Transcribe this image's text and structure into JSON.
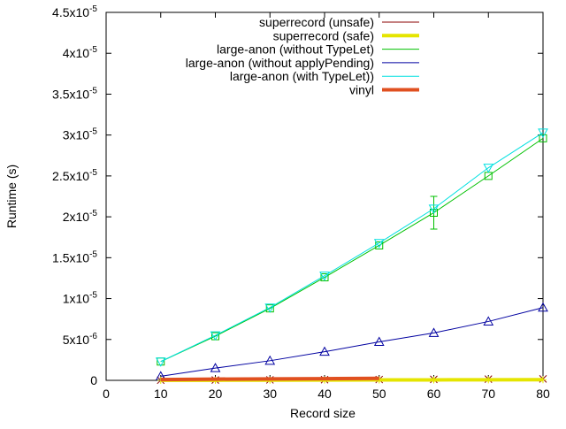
{
  "chart_data": {
    "type": "line",
    "xlabel": "Record size",
    "ylabel": "Runtime (s)",
    "x": [
      10,
      20,
      30,
      40,
      50,
      60,
      70,
      80
    ],
    "xlim": [
      0,
      80
    ],
    "xticks": [
      0,
      10,
      20,
      30,
      40,
      50,
      60,
      70,
      80
    ],
    "ylim": [
      0,
      4.5e-05
    ],
    "yticks": [
      {
        "value": 0,
        "label": "0"
      },
      {
        "value": 5e-06,
        "label": "5x10",
        "exponent": "-6"
      },
      {
        "value": 1e-05,
        "label": "1x10",
        "exponent": "-5"
      },
      {
        "value": 1.5e-05,
        "label": "1.5x10",
        "exponent": "-5"
      },
      {
        "value": 2e-05,
        "label": "2x10",
        "exponent": "-5"
      },
      {
        "value": 2.5e-05,
        "label": "2.5x10",
        "exponent": "-5"
      },
      {
        "value": 3e-05,
        "label": "3x10",
        "exponent": "-5"
      },
      {
        "value": 3.5e-05,
        "label": "3.5x10",
        "exponent": "-5"
      },
      {
        "value": 4e-05,
        "label": "4x10",
        "exponent": "-5"
      },
      {
        "value": 4.5e-05,
        "label": "4.5x10",
        "exponent": "-5"
      }
    ],
    "legend": "top-right",
    "series": [
      {
        "name": "superrecord (unsafe)",
        "color": "#8b0000",
        "width": 1,
        "marker": "cross",
        "values": [
          2e-08,
          4e-08,
          6e-08,
          8e-08,
          1e-07,
          1.2e-07,
          1.5e-07,
          1.8e-07
        ]
      },
      {
        "name": "superrecord (safe)",
        "color": "#e5e500",
        "width": 4,
        "marker": "plus",
        "values": [
          1e-08,
          2e-08,
          3e-08,
          4e-08,
          5e-08,
          6e-08,
          7e-08,
          8e-08
        ]
      },
      {
        "name": "large-anon (without TypeLet)",
        "color": "#00c000",
        "width": 1,
        "marker": "box",
        "values": [
          2.3e-06,
          5.4e-06,
          8.8e-06,
          1.26e-05,
          1.65e-05,
          2.05e-05,
          2.5e-05,
          2.96e-05
        ],
        "errors": [
          null,
          null,
          null,
          null,
          null,
          2e-06,
          null,
          null
        ]
      },
      {
        "name": "large-anon (without applyPending)",
        "color": "#0000a0",
        "width": 1,
        "marker": "triangle",
        "values": [
          5e-07,
          1.5e-06,
          2.4e-06,
          3.5e-06,
          4.7e-06,
          5.8e-06,
          7.2e-06,
          8.9e-06
        ]
      },
      {
        "name": "large-anon (with TypeLet))",
        "color": "#00e0e0",
        "width": 1,
        "marker": "itriangle",
        "values": [
          2.3e-06,
          5.5e-06,
          8.9e-06,
          1.28e-05,
          1.68e-05,
          2.1e-05,
          2.6e-05,
          3.03e-05
        ]
      },
      {
        "name": "vinyl",
        "color": "#e05020",
        "width": 4,
        "marker": "none",
        "values": [
          1e-07,
          1.5e-07,
          1.8e-07,
          2e-07,
          2.5e-07,
          null,
          null,
          null
        ]
      }
    ]
  }
}
